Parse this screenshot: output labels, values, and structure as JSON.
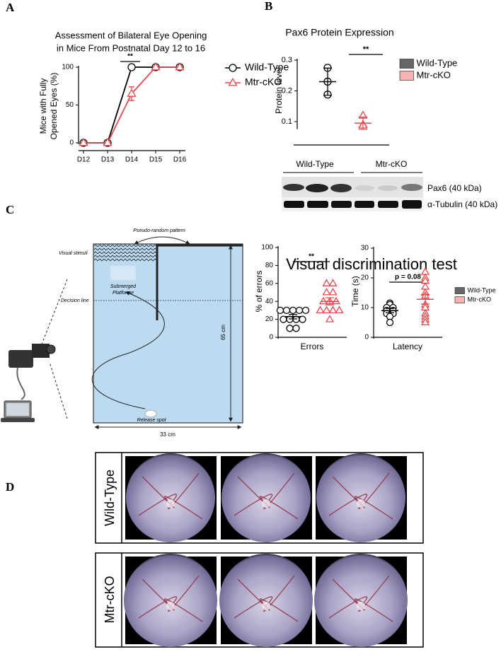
{
  "panel_labels": [
    "A",
    "B",
    "C",
    "D"
  ],
  "chart_data": [
    {
      "type": "line",
      "title": [
        "Assessment of Bilateral Eye Opening",
        "in Mice From Postnatal Day 12 to 16"
      ],
      "ylabel": [
        "Mice with Fully",
        "Opened Eyes (%)"
      ],
      "categories": [
        "D12",
        "D13",
        "D14",
        "D15",
        "D16"
      ],
      "series": [
        {
          "name": "Wild-Type",
          "color": "#000000",
          "marker": "circle",
          "values": [
            0,
            0,
            100,
            100,
            100
          ]
        },
        {
          "name": "Mtr-cKO",
          "color": "#e8484d",
          "marker": "triangle",
          "values": [
            0,
            0,
            65,
            100,
            100
          ],
          "errors": [
            null,
            null,
            9,
            null,
            null
          ]
        }
      ],
      "ylim": [
        0,
        100
      ],
      "yticks": [
        0,
        50,
        100
      ],
      "annotation": "**",
      "legend": "right"
    },
    {
      "type": "dot",
      "title": "Pax6 Protein Expression",
      "ylabel": "Protein level",
      "series": [
        {
          "name": "Wild-Type",
          "color": "#000000",
          "fill": "#666666",
          "marker": "circle",
          "values": [
            0.275,
            0.23,
            0.188
          ],
          "mean": 0.23,
          "error": 0.044
        },
        {
          "name": "Mtr-cKO",
          "color": "#e8484d",
          "fill": "#f6b3b3",
          "marker": "triangle",
          "values": [
            0.12,
            0.09,
            0.088
          ],
          "mean": 0.095,
          "error": 0.02
        }
      ],
      "ylim": [
        0.08,
        0.3
      ],
      "yticks": [
        0.1,
        0.2,
        0.3
      ],
      "annotation": "**",
      "legend": "right"
    },
    {
      "type": "dot",
      "ylabel": "% of errors",
      "xlabel": "Errors",
      "series": [
        {
          "name": "Wild-Type",
          "color": "#000000",
          "marker": "circle",
          "values": [
            30,
            30,
            30,
            30,
            30,
            20,
            20,
            20,
            20,
            10,
            10
          ],
          "mean": 23,
          "error": 2.5
        },
        {
          "name": "Mtr-cKO",
          "color": "#e8484d",
          "marker": "triangle",
          "values": [
            60,
            60,
            50,
            50,
            40,
            40,
            40,
            30,
            30,
            30,
            30,
            20
          ],
          "mean": 40,
          "error": 4
        }
      ],
      "ylim": [
        0,
        100
      ],
      "yticks": [
        0,
        20,
        40,
        60,
        80,
        100
      ],
      "annotation": "**",
      "legend": "none"
    },
    {
      "type": "dot",
      "ylabel": "Time (s)",
      "xlabel": "Latency",
      "series": [
        {
          "name": "Wild-Type",
          "color": "#000000",
          "fill": "#666666",
          "marker": "circle",
          "values": [
            11.5,
            11,
            10,
            10,
            9,
            9,
            8,
            8,
            7,
            5
          ],
          "mean": 9,
          "error": 0.7
        },
        {
          "name": "Mtr-cKO",
          "color": "#e8484d",
          "fill": "#f6b3b3",
          "marker": "triangle",
          "values": [
            22,
            20,
            19,
            17,
            15,
            14,
            11,
            10,
            8,
            7,
            6,
            5
          ],
          "mean": 12.8,
          "error": 1.6
        }
      ],
      "ylim": [
        0,
        30
      ],
      "yticks": [
        0,
        10,
        20,
        30
      ],
      "annotation": "p = 0.08",
      "legend": "right"
    }
  ],
  "blot": {
    "groups": [
      "Wild-Type",
      "Mtr-cKO"
    ],
    "bands": [
      "Pax6 (40 kDa)",
      "α-Tubulin (40 kDa)"
    ]
  },
  "maze": {
    "pattern": "Pseudo-random pattern",
    "stimuli": "Visual stimuli",
    "platform": [
      "Submerged",
      "Platforme"
    ],
    "decision": "Decision line",
    "release": "Release spot",
    "height": "65 cm",
    "width": "33 cm"
  },
  "test_title": "Visual discrimination test",
  "fundus": {
    "rows": [
      "Wild-Type",
      "Mtr-cKO"
    ]
  }
}
